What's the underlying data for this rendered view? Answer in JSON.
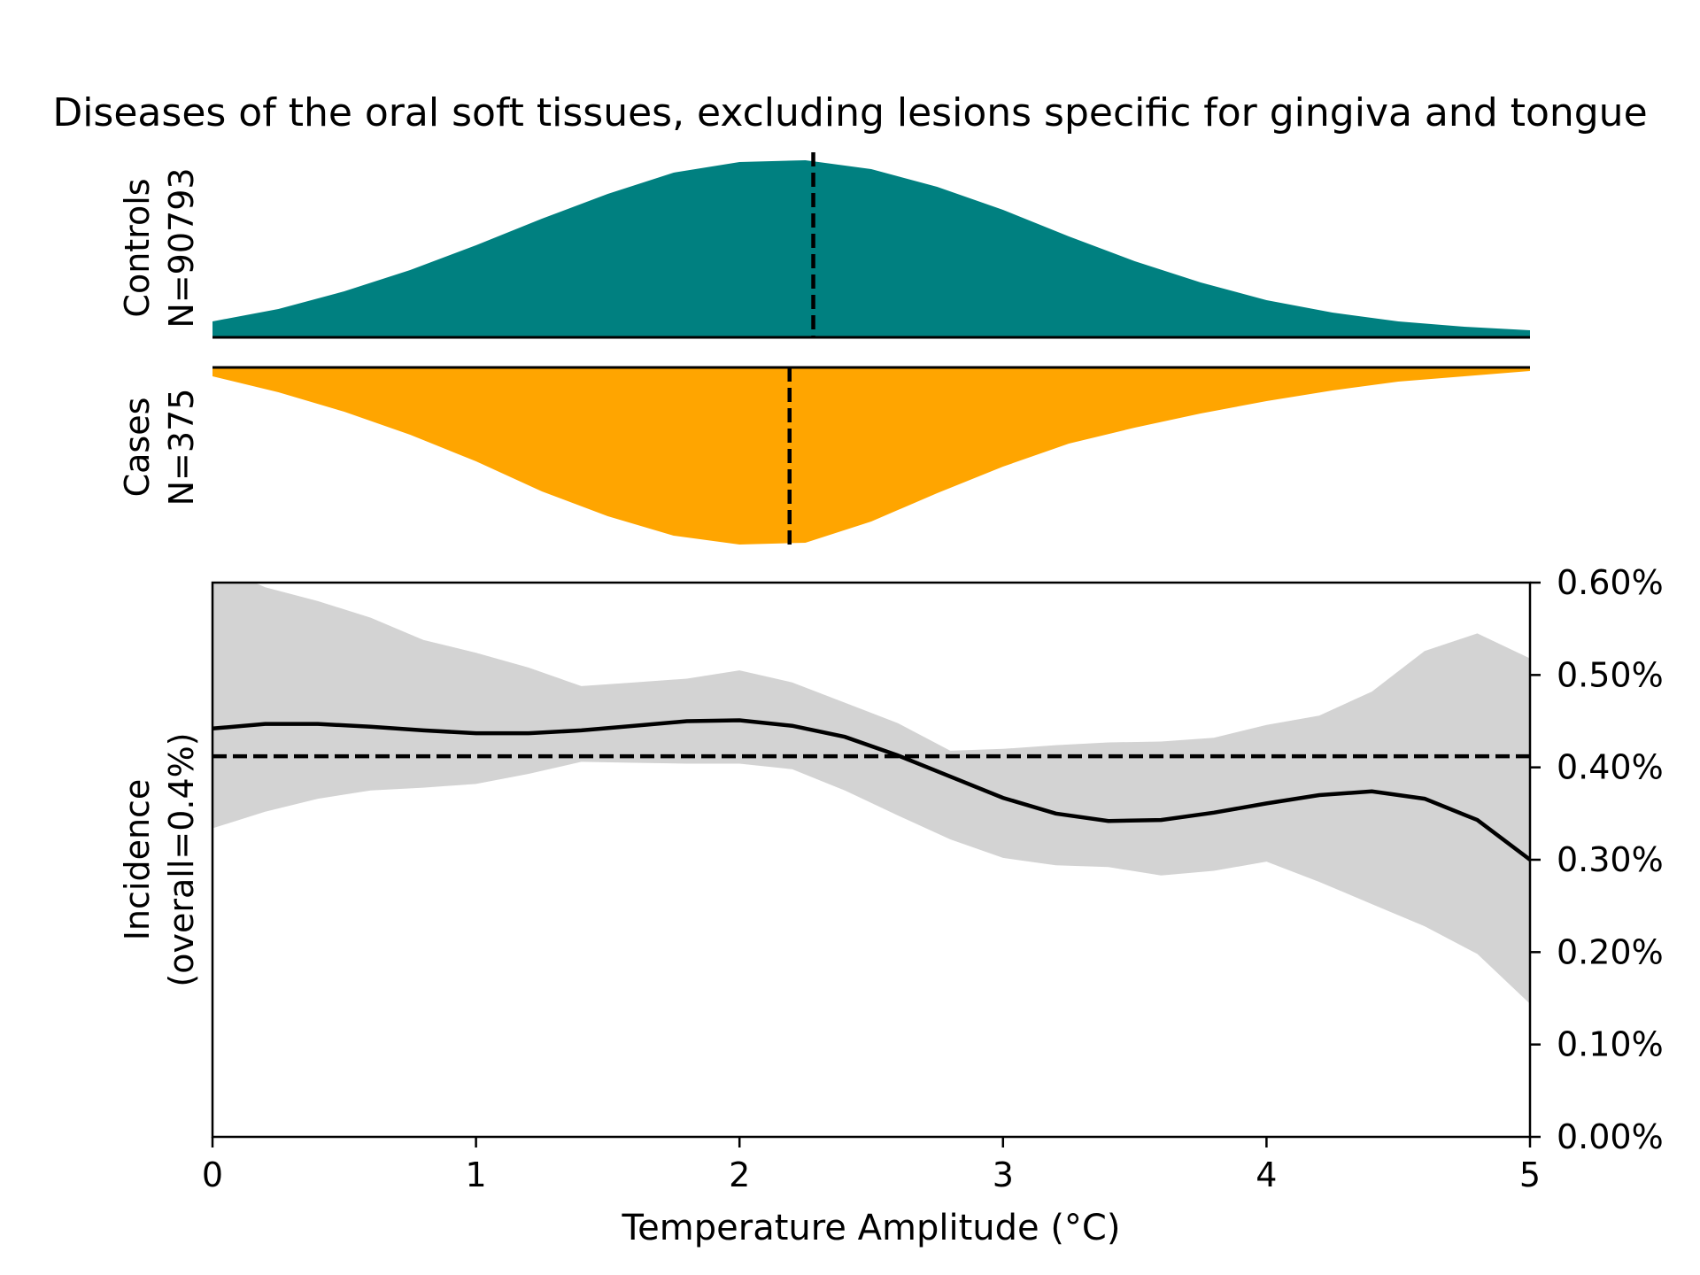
{
  "title": "Diseases of the oral soft tissues, excluding lesions specific for gingiva and tongue",
  "colors": {
    "controls": "#008080",
    "cases": "#ffa500",
    "ci_band": "#d3d3d3",
    "line": "#000000"
  },
  "panels": {
    "controls_label": "Controls",
    "controls_n": "N=90793",
    "cases_label": "Cases",
    "cases_n": "N=375",
    "incidence_label": "Incidence",
    "incidence_sub": "(overall=0.4%)"
  },
  "chart_data": [
    {
      "type": "area",
      "name": "Controls",
      "x": [
        0,
        0.25,
        0.5,
        0.75,
        1.0,
        1.25,
        1.5,
        1.75,
        2.0,
        2.25,
        2.5,
        2.75,
        3.0,
        3.25,
        3.5,
        3.75,
        4.0,
        4.25,
        4.5,
        4.75,
        5.0
      ],
      "values": [
        0.09,
        0.16,
        0.26,
        0.38,
        0.52,
        0.67,
        0.81,
        0.93,
        0.99,
        1.0,
        0.95,
        0.85,
        0.72,
        0.57,
        0.43,
        0.31,
        0.21,
        0.14,
        0.09,
        0.06,
        0.04
      ],
      "median": 2.28
    },
    {
      "type": "area",
      "name": "Cases",
      "x": [
        0,
        0.25,
        0.5,
        0.75,
        1.0,
        1.25,
        1.5,
        1.75,
        2.0,
        2.25,
        2.5,
        2.75,
        3.0,
        3.25,
        3.5,
        3.75,
        4.0,
        4.25,
        4.5,
        4.75,
        5.0
      ],
      "values": [
        0.05,
        0.14,
        0.25,
        0.38,
        0.53,
        0.7,
        0.84,
        0.95,
        1.0,
        0.99,
        0.87,
        0.71,
        0.56,
        0.43,
        0.34,
        0.26,
        0.19,
        0.13,
        0.08,
        0.05,
        0.02
      ],
      "median": 2.19
    },
    {
      "type": "line",
      "xlabel": "Temperature Amplitude (°C)",
      "ylabel": "Incidence (overall=0.4%)",
      "xlim": [
        0,
        5
      ],
      "ylim": [
        0,
        0.006
      ],
      "x_ticks": [
        "0",
        "1",
        "2",
        "3",
        "4",
        "5"
      ],
      "y_ticks": [
        "0.00%",
        "0.10%",
        "0.20%",
        "0.30%",
        "0.40%",
        "0.50%",
        "0.60%"
      ],
      "overall_rate": 0.00412,
      "x": [
        0,
        0.2,
        0.4,
        0.6,
        0.8,
        1.0,
        1.2,
        1.4,
        1.6,
        1.8,
        2.0,
        2.2,
        2.4,
        2.6,
        2.8,
        3.0,
        3.2,
        3.4,
        3.6,
        3.8,
        4.0,
        4.2,
        4.4,
        4.6,
        4.8,
        5.0
      ],
      "values": [
        0.00442,
        0.00447,
        0.00447,
        0.00444,
        0.0044,
        0.00437,
        0.00437,
        0.0044,
        0.00445,
        0.0045,
        0.00451,
        0.00445,
        0.00433,
        0.00413,
        0.0039,
        0.00367,
        0.0035,
        0.00342,
        0.00343,
        0.00351,
        0.00361,
        0.0037,
        0.00374,
        0.00366,
        0.00343,
        0.003
      ],
      "ci_upper": [
        0.0062,
        0.00595,
        0.0058,
        0.00562,
        0.00538,
        0.00524,
        0.00508,
        0.00488,
        0.00492,
        0.00496,
        0.00505,
        0.00492,
        0.0047,
        0.00448,
        0.00418,
        0.0042,
        0.00424,
        0.00427,
        0.00428,
        0.00432,
        0.00446,
        0.00456,
        0.00482,
        0.00526,
        0.00545,
        0.00518
      ],
      "ci_lower": [
        0.00334,
        0.00352,
        0.00366,
        0.00375,
        0.00378,
        0.00382,
        0.00393,
        0.00406,
        0.00405,
        0.00404,
        0.00404,
        0.00398,
        0.00375,
        0.00348,
        0.00322,
        0.00302,
        0.00294,
        0.00292,
        0.00283,
        0.00288,
        0.00298,
        0.00276,
        0.00252,
        0.00228,
        0.00198,
        0.00144
      ],
      "grid": false
    }
  ]
}
